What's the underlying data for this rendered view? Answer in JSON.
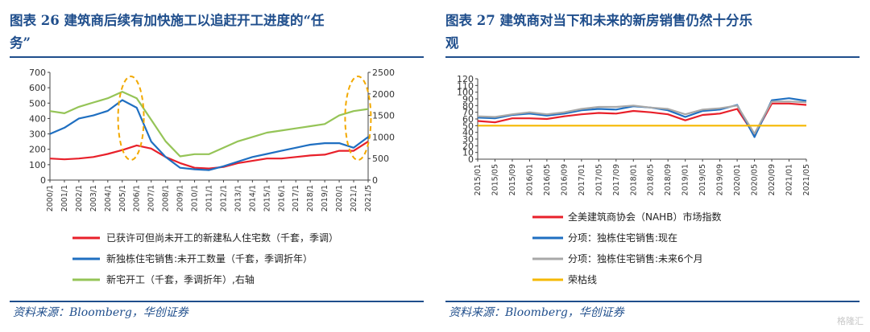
{
  "left": {
    "title": "图表 26   建筑商后续有加快施工以追赶开工进度的“任务”",
    "title_line1": "图表 26   建筑商后续有加快施工以追赶开工进度的“任",
    "title_line2": "务”",
    "source": "资料来源：Bloomberg，华创证券"
  },
  "right": {
    "title": "图表 27   建筑商对当下和未来的新房销售仍然十分乐观",
    "title_line1": "图表 27   建筑商对当下和未来的新房销售仍然十分乐",
    "title_line2": "观",
    "source": "资料来源：Bloomberg，华创证券"
  },
  "watermark": "格隆汇",
  "chart_data": [
    {
      "type": "line",
      "title": "",
      "x": [
        "2000/1",
        "2001/1",
        "2002/1",
        "2003/1",
        "2004/1",
        "2005/1",
        "2006/1",
        "2007/1",
        "2008/1",
        "2009/1",
        "2010/1",
        "2011/1",
        "2012/1",
        "2013/1",
        "2014/1",
        "2015/1",
        "2016/1",
        "2017/1",
        "2018/1",
        "2019/1",
        "2020/1",
        "2021/1",
        "2021/5"
      ],
      "ylim": [
        0,
        700
      ],
      "yticks": [
        0,
        100,
        200,
        300,
        400,
        500,
        600,
        700
      ],
      "y2lim": [
        0,
        2500
      ],
      "y2ticks": [
        0,
        500,
        1000,
        1500,
        2000,
        2500
      ],
      "series": [
        {
          "name": "已获许可但尚未开工的新建私人住宅数（千套，季调）",
          "color": "#e8202a",
          "axis": "left",
          "values": [
            140,
            135,
            140,
            150,
            170,
            195,
            225,
            205,
            150,
            110,
            80,
            75,
            85,
            110,
            125,
            140,
            140,
            150,
            160,
            165,
            190,
            190,
            250
          ]
        },
        {
          "name": "新独栋住宅销售:未开工数量（千套，季调折年）",
          "color": "#1f6fc1",
          "axis": "left",
          "values": [
            300,
            340,
            400,
            420,
            450,
            520,
            470,
            250,
            150,
            80,
            70,
            65,
            90,
            120,
            150,
            170,
            190,
            210,
            230,
            240,
            240,
            210,
            280
          ]
        },
        {
          "name": "新宅开工（千套，季调折年）,右轴",
          "color": "#95c457",
          "axis": "right",
          "values": [
            1600,
            1550,
            1700,
            1800,
            1900,
            2050,
            1900,
            1400,
            900,
            550,
            600,
            600,
            750,
            900,
            1000,
            1100,
            1150,
            1200,
            1250,
            1300,
            1500,
            1600,
            1650
          ]
        }
      ],
      "highlights": [
        {
          "center_index": 5.6,
          "label": "2005-2006"
        },
        {
          "center_index": 21.3,
          "label": "2020-2021"
        }
      ]
    },
    {
      "type": "line",
      "title": "",
      "x": [
        "2015/01",
        "2015/05",
        "2015/09",
        "2016/01",
        "2016/05",
        "2016/09",
        "2017/01",
        "2017/05",
        "2017/09",
        "2018/01",
        "2018/05",
        "2018/09",
        "2019/01",
        "2019/05",
        "2019/09",
        "2020/01",
        "2020/05",
        "2020/09",
        "2021/01",
        "2021/05"
      ],
      "ylim": [
        0,
        120
      ],
      "yticks": [
        0,
        10,
        20,
        30,
        40,
        50,
        60,
        70,
        80,
        90,
        100,
        110,
        120
      ],
      "series": [
        {
          "name": "全美建筑商协会（NAHB）市场指数",
          "color": "#e8202a",
          "values": [
            57,
            55,
            61,
            61,
            60,
            64,
            67,
            69,
            68,
            72,
            70,
            67,
            58,
            66,
            68,
            75,
            36,
            83,
            83,
            81
          ]
        },
        {
          "name": "分项：独栋住宅销售:现在",
          "color": "#1f6fc1",
          "values": [
            62,
            61,
            66,
            68,
            65,
            68,
            73,
            75,
            74,
            79,
            77,
            73,
            63,
            72,
            74,
            81,
            33,
            88,
            91,
            87
          ]
        },
        {
          "name": "分项：独栋住宅销售:未来6个月",
          "color": "#a8a8a8",
          "values": [
            64,
            63,
            67,
            70,
            67,
            70,
            75,
            78,
            78,
            80,
            77,
            75,
            67,
            74,
            76,
            80,
            38,
            86,
            86,
            85
          ]
        },
        {
          "name": "荣枯线",
          "color": "#f5b800",
          "values": [
            50,
            50,
            50,
            50,
            50,
            50,
            50,
            50,
            50,
            50,
            50,
            50,
            50,
            50,
            50,
            50,
            50,
            50,
            50,
            50
          ]
        }
      ]
    }
  ]
}
